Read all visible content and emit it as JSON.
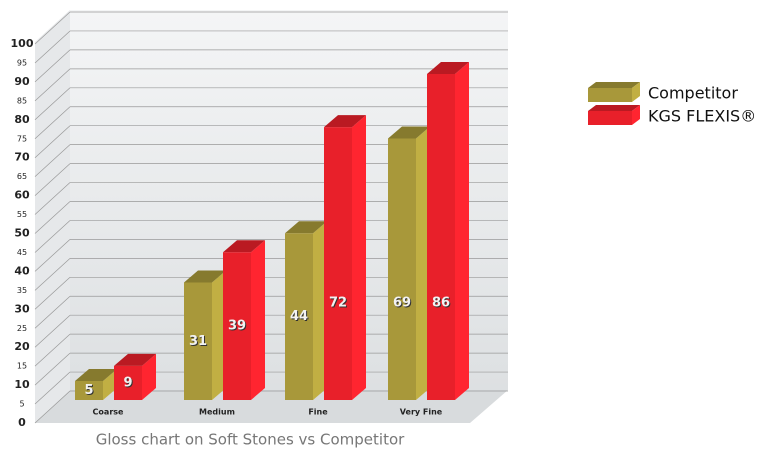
{
  "chart_data": {
    "type": "bar",
    "caption": "Gloss chart on Soft Stones vs Competitor",
    "categories": [
      "Coarse",
      "Medium",
      "Fine",
      "Very Fine"
    ],
    "series": [
      {
        "name": "Competitor",
        "color": "#a8983a",
        "values": [
          5,
          31,
          44,
          69
        ]
      },
      {
        "name": "KGS FLEXIS®",
        "color": "#e8202a",
        "values": [
          9,
          39,
          72,
          86
        ]
      }
    ],
    "ylim": [
      0,
      100
    ],
    "yticks": [
      0,
      5,
      10,
      15,
      20,
      25,
      30,
      35,
      40,
      45,
      50,
      55,
      60,
      65,
      70,
      75,
      80,
      85,
      90,
      95,
      100
    ],
    "grid": true,
    "legend": "right"
  }
}
